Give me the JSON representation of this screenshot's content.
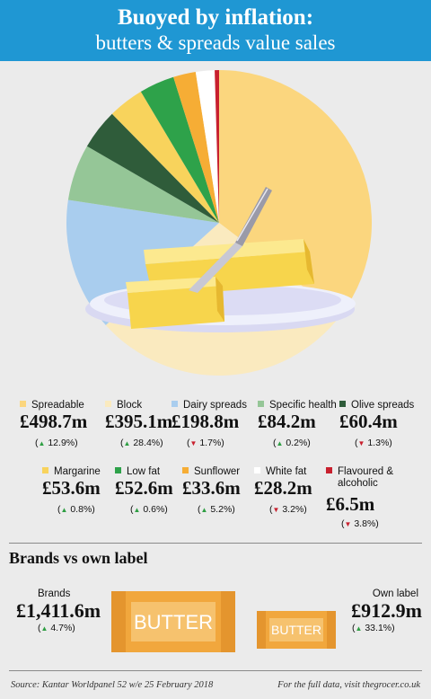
{
  "header": {
    "title": "Buoyed by inflation:",
    "subtitle": "butters & spreads value sales"
  },
  "chart_data": {
    "type": "pie",
    "title": "Buoyed by inflation: butters & spreads value sales",
    "series": [
      {
        "name": "Spreadable",
        "value": 498.7,
        "display": "£498.7m",
        "change": "12.9%",
        "direction": "up",
        "color": "#fbd67e"
      },
      {
        "name": "Block",
        "value": 395.1,
        "display": "£395.1m",
        "change": "28.4%",
        "direction": "up",
        "color": "#faeabf"
      },
      {
        "name": "Dairy spreads",
        "value": 198.8,
        "display": "£198.8m",
        "change": "1.7%",
        "direction": "down",
        "color": "#a9cdee"
      },
      {
        "name": "Specific health",
        "value": 84.2,
        "display": "£84.2m",
        "change": "0.2%",
        "direction": "up",
        "color": "#95c697"
      },
      {
        "name": "Olive spreads",
        "value": 60.4,
        "display": "£60.4m",
        "change": "1.3%",
        "direction": "down",
        "color": "#2f5c3a"
      },
      {
        "name": "Margarine",
        "value": 53.6,
        "display": "£53.6m",
        "change": "0.8%",
        "direction": "up",
        "color": "#f8d35c"
      },
      {
        "name": "Low fat",
        "value": 52.6,
        "display": "£52.6m",
        "change": "0.6%",
        "direction": "up",
        "color": "#2ea24a"
      },
      {
        "name": "Sunflower",
        "value": 33.6,
        "display": "£33.6m",
        "change": "5.2%",
        "direction": "up",
        "color": "#f6ad35"
      },
      {
        "name": "White fat",
        "value": 28.2,
        "display": "£28.2m",
        "change": "3.2%",
        "direction": "down",
        "color": "#ffffff"
      },
      {
        "name": "Flavoured & alcoholic",
        "value": 6.5,
        "display": "£6.5m",
        "change": "3.8%",
        "direction": "down",
        "color": "#c8202e"
      }
    ]
  },
  "brands_section": {
    "title": "Brands vs own label",
    "brands": {
      "label": "Brands",
      "value": "£1,411.6m",
      "change": "4.7%",
      "direction": "up"
    },
    "own_label": {
      "label": "Own label",
      "value": "£912.9m",
      "change": "33.1%",
      "direction": "up"
    },
    "pack_text": "BUTTER"
  },
  "footer": {
    "source": "Source: Kantar Worldpanel 52 w/e 25 February 2018",
    "link": "For the full data, visit thegrocer.co.uk"
  }
}
